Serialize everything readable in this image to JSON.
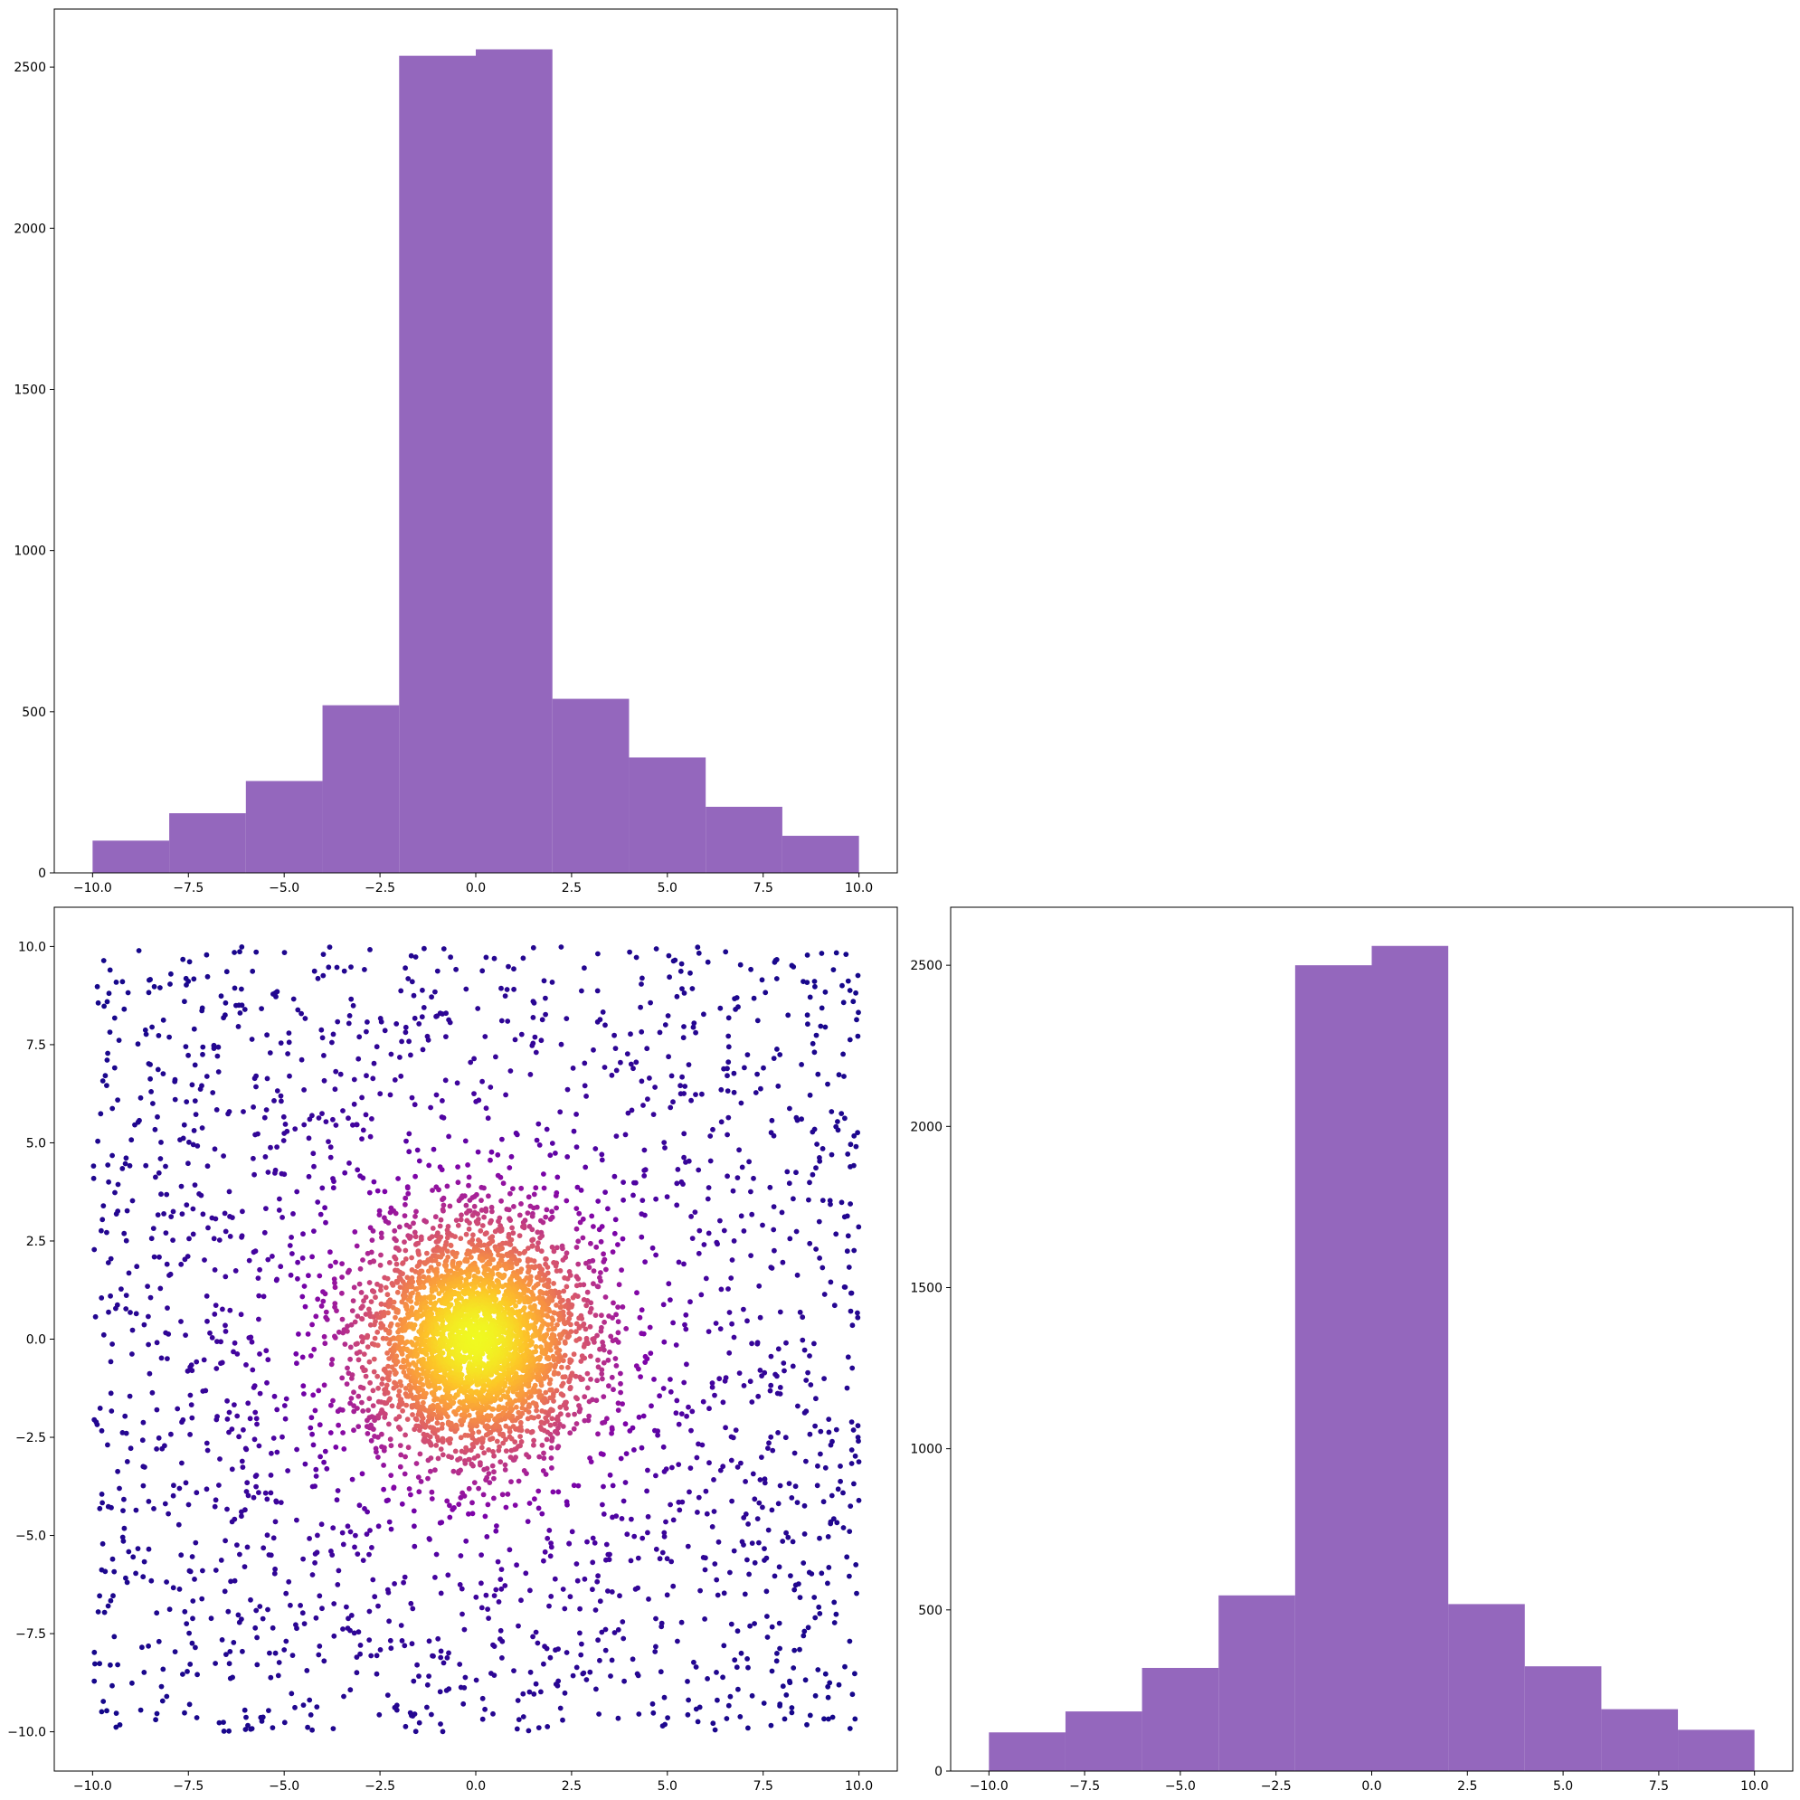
{
  "colors": {
    "bar": "#9467bd",
    "scatter_colormap": "plasma",
    "background": "#ffffff"
  },
  "chart_data": [
    {
      "id": "top-left",
      "type": "bar",
      "title": "",
      "xlabel": "",
      "ylabel": "",
      "bin_edges": [
        -10,
        -8,
        -6,
        -4,
        -2,
        0,
        2,
        4,
        6,
        8,
        10
      ],
      "values": [
        100,
        185,
        285,
        520,
        2535,
        2555,
        540,
        358,
        205,
        115
      ],
      "xlim": [
        -11,
        11
      ],
      "ylim": [
        0,
        2680
      ],
      "xticks": [
        -10,
        -7.5,
        -5,
        -2.5,
        0,
        2.5,
        5,
        7.5,
        10
      ],
      "xtick_labels": [
        "−10.0",
        "−7.5",
        "−5.0",
        "−2.5",
        "0.0",
        "2.5",
        "5.0",
        "7.5",
        "10.0"
      ],
      "yticks": [
        0,
        500,
        1000,
        1500,
        2000,
        2500
      ],
      "ytick_labels": [
        "0",
        "500",
        "1000",
        "1500",
        "2000",
        "2500"
      ],
      "grid": false,
      "legend": "none"
    },
    {
      "id": "bottom-left",
      "type": "scatter",
      "title": "",
      "xlabel": "",
      "ylabel": "",
      "distribution": "dense gaussian core around (0, 0) with a sparse uniform background across [-10, 10] x [-10, 10]",
      "point_count": 5500,
      "core_std": 1.4,
      "background_fraction": 0.4,
      "color_by": "local density (plasma: dark blue-violet sparse → yellow dense)",
      "xlim": [
        -11,
        11
      ],
      "ylim": [
        -11,
        11
      ],
      "xticks": [
        -10,
        -7.5,
        -5,
        -2.5,
        0,
        2.5,
        5,
        7.5,
        10
      ],
      "xtick_labels": [
        "−10.0",
        "−7.5",
        "−5.0",
        "−2.5",
        "0.0",
        "2.5",
        "5.0",
        "7.5",
        "10.0"
      ],
      "yticks": [
        -10,
        -7.5,
        -5,
        -2.5,
        0,
        2.5,
        5,
        7.5,
        10
      ],
      "ytick_labels": [
        "−10.0",
        "−7.5",
        "−5.0",
        "−2.5",
        "0.0",
        "2.5",
        "5.0",
        "7.5",
        "10.0"
      ],
      "grid": false,
      "legend": "none"
    },
    {
      "id": "bottom-right",
      "type": "bar",
      "title": "",
      "xlabel": "",
      "ylabel": "",
      "bin_edges": [
        -10,
        -8,
        -6,
        -4,
        -2,
        0,
        2,
        4,
        6,
        8,
        10
      ],
      "values": [
        120,
        185,
        320,
        545,
        2500,
        2560,
        518,
        325,
        192,
        128
      ],
      "xlim": [
        -11,
        11
      ],
      "ylim": [
        0,
        2680
      ],
      "xticks": [
        -10,
        -7.5,
        -5,
        -2.5,
        0,
        2.5,
        5,
        7.5,
        10
      ],
      "xtick_labels": [
        "−10.0",
        "−7.5",
        "−5.0",
        "−2.5",
        "0.0",
        "2.5",
        "5.0",
        "7.5",
        "10.0"
      ],
      "yticks": [
        0,
        500,
        1000,
        1500,
        2000,
        2500
      ],
      "ytick_labels": [
        "0",
        "500",
        "1000",
        "1500",
        "2000",
        "2500"
      ],
      "grid": false,
      "legend": "none"
    }
  ]
}
